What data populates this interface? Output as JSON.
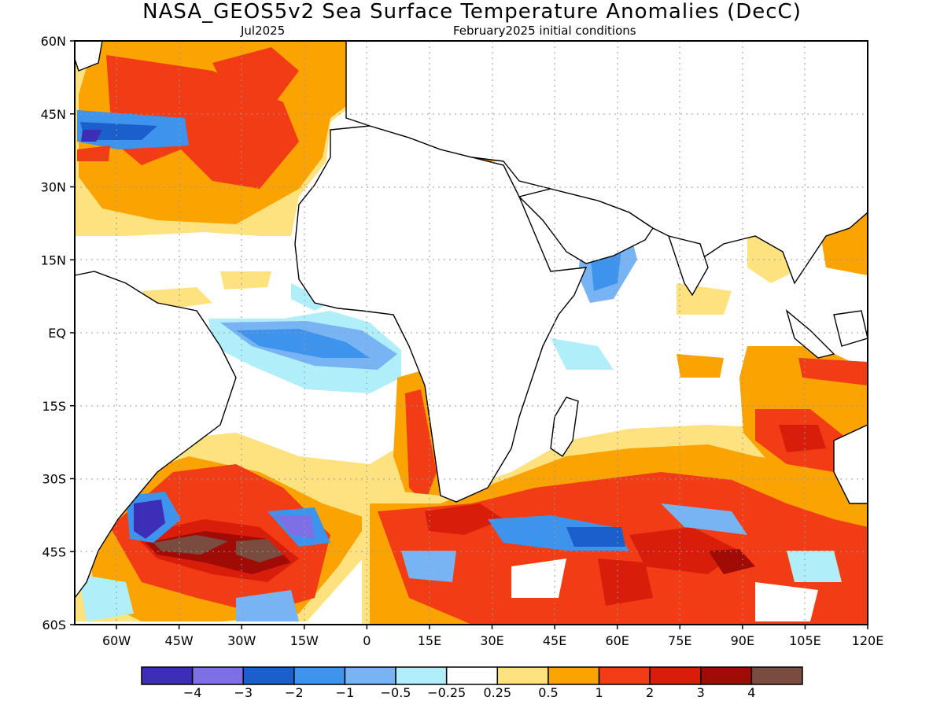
{
  "title": "NASA_GEOS5v2 Sea Surface Temperature Anomalies (DecC)",
  "subtitle_left": "Jul2025",
  "subtitle_right": "February2025 initial conditions",
  "map": {
    "lon_range": [
      -70,
      120
    ],
    "lat_range": [
      -60,
      60
    ],
    "x_ticks": [
      "60W",
      "45W",
      "30W",
      "15W",
      "0",
      "15E",
      "30E",
      "45E",
      "60E",
      "75E",
      "90E",
      "105E",
      "120E"
    ],
    "y_ticks": [
      "60N",
      "45N",
      "30N",
      "15N",
      "EQ",
      "15S",
      "30S",
      "45S",
      "60S"
    ],
    "grid": "dotted"
  },
  "colorbar": {
    "colors": [
      "#3d2eb8",
      "#7f6fe6",
      "#1b5fcc",
      "#3e93ec",
      "#78b4f3",
      "#b0effa",
      "#ffffff",
      "#fde27f",
      "#fba300",
      "#f23c15",
      "#d81d0b",
      "#a10b06",
      "#7a4c40"
    ],
    "labels": [
      "−4",
      "−3",
      "−2",
      "−1",
      "−0.5",
      "−0.25",
      "0.25",
      "0.5",
      "1",
      "2",
      "3",
      "4"
    ]
  }
}
